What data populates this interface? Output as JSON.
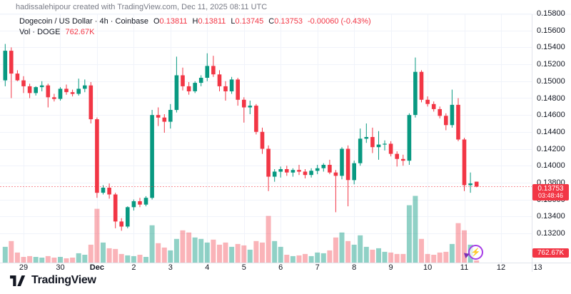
{
  "attribution": "hadissalehipour created with TradingView.com, Dec 11, 2025 08:11 UTC",
  "legend": {
    "title": "Dogecoin / US Dollar · 4h · Coinbase",
    "o_label": "O",
    "o": "0.13811",
    "h_label": "H",
    "h": "0.13811",
    "l_label": "L",
    "l": "0.13745",
    "c_label": "C",
    "c": "0.13753",
    "change": "-0.00060 (-0.43%)",
    "vol_title": "Vol · DOGE",
    "vol": "762.67K"
  },
  "badges": {
    "last_price": "0.13753",
    "countdown": "03:48:46",
    "volume": "762.67K"
  },
  "logo_text": "TradingView",
  "colors": {
    "up": "#089981",
    "down": "#F23645",
    "vol_up": "rgba(8,153,129,0.45)",
    "vol_down": "rgba(242,54,69,0.38)",
    "grid": "#F0F3FA",
    "separator": "#E0E3EB",
    "axis_text": "#131722",
    "muted_text": "#787B86",
    "price_line": "#F23645",
    "badge": "#F23645",
    "lightning": "#A53BE6"
  },
  "price_axis": {
    "ticks": [
      "0.15800",
      "0.15600",
      "0.15400",
      "0.15200",
      "0.15000",
      "0.14800",
      "0.14600",
      "0.14400",
      "0.14200",
      "0.14000",
      "0.13800",
      "0.13600",
      "0.13400",
      "0.13200"
    ]
  },
  "time_axis": {
    "ticks": [
      {
        "label": "29",
        "i": 3
      },
      {
        "label": "30",
        "i": 9
      },
      {
        "label": "Dec",
        "i": 15,
        "bold": true
      },
      {
        "label": "2",
        "i": 21
      },
      {
        "label": "3",
        "i": 27
      },
      {
        "label": "4",
        "i": 33
      },
      {
        "label": "5",
        "i": 39
      },
      {
        "label": "6",
        "i": 45
      },
      {
        "label": "7",
        "i": 51
      },
      {
        "label": "8",
        "i": 57
      },
      {
        "label": "9",
        "i": 63
      },
      {
        "label": "10",
        "i": 69
      },
      {
        "label": "11",
        "i": 75
      },
      {
        "label": "12",
        "i": 81
      },
      {
        "label": "13",
        "i": 87
      }
    ]
  },
  "chart_data": {
    "type": "candlestick",
    "symbol": "Dogecoin / US Dollar",
    "exchange": "Coinbase",
    "interval": "4h",
    "title": "Dogecoin / US Dollar · 4h · Coinbase",
    "last_candle": {
      "open": 0.13811,
      "high": 0.13811,
      "low": 0.13745,
      "close": 0.13753,
      "change": -0.0006,
      "change_pct": -0.43,
      "volume": "762.67K",
      "countdown": "03:48:46"
    },
    "current_price": 0.13753,
    "ylim": [
      0.1285,
      0.158
    ],
    "price_grid_step": 0.002,
    "x_range_days": [
      "Nov 28",
      "Dec 13"
    ],
    "grid": true,
    "volume_unit": "K",
    "volume_axis_max": 24000,
    "columns": [
      "open",
      "high",
      "low",
      "close",
      "volume_K"
    ],
    "candles": [
      [
        0.1501,
        0.1544,
        0.1494,
        0.1536,
        5590
      ],
      [
        0.1536,
        0.154,
        0.148,
        0.1509,
        7620
      ],
      [
        0.1509,
        0.1513,
        0.15,
        0.1501,
        3560
      ],
      [
        0.1501,
        0.1506,
        0.1486,
        0.1494,
        2030
      ],
      [
        0.1494,
        0.1497,
        0.148,
        0.1486,
        2290
      ],
      [
        0.1486,
        0.1494,
        0.1483,
        0.1493,
        2030
      ],
      [
        0.1493,
        0.15,
        0.1488,
        0.1495,
        1780
      ],
      [
        0.1495,
        0.1497,
        0.1469,
        0.1481,
        2290
      ],
      [
        0.1481,
        0.1485,
        0.1476,
        0.1479,
        1780
      ],
      [
        0.1479,
        0.1493,
        0.1477,
        0.1491,
        2030
      ],
      [
        0.1491,
        0.1496,
        0.1484,
        0.1487,
        1520
      ],
      [
        0.1487,
        0.149,
        0.1482,
        0.1485,
        1780
      ],
      [
        0.1485,
        0.1503,
        0.1483,
        0.1491,
        3300
      ],
      [
        0.1491,
        0.1502,
        0.1487,
        0.1495,
        2790
      ],
      [
        0.1495,
        0.1499,
        0.145,
        0.1455,
        6350
      ],
      [
        0.1455,
        0.1457,
        0.1362,
        0.1368,
        19050
      ],
      [
        0.1368,
        0.1377,
        0.1366,
        0.1374,
        7110
      ],
      [
        0.1374,
        0.1379,
        0.1361,
        0.1366,
        5080
      ],
      [
        0.1366,
        0.1368,
        0.1326,
        0.1334,
        4830
      ],
      [
        0.1334,
        0.1338,
        0.1323,
        0.1328,
        3050
      ],
      [
        0.1328,
        0.1352,
        0.1326,
        0.1351,
        2540
      ],
      [
        0.1351,
        0.136,
        0.1347,
        0.1358,
        2290
      ],
      [
        0.1358,
        0.1362,
        0.1351,
        0.1354,
        2790
      ],
      [
        0.1354,
        0.1364,
        0.1352,
        0.1362,
        2030
      ],
      [
        0.1362,
        0.1466,
        0.136,
        0.146,
        13210
      ],
      [
        0.146,
        0.1469,
        0.1447,
        0.1457,
        6860
      ],
      [
        0.1457,
        0.1461,
        0.1439,
        0.1452,
        5330
      ],
      [
        0.1452,
        0.1473,
        0.1444,
        0.1466,
        4320
      ],
      [
        0.1466,
        0.1529,
        0.1463,
        0.1507,
        8380
      ],
      [
        0.1507,
        0.1516,
        0.1489,
        0.1494,
        11430
      ],
      [
        0.1494,
        0.1499,
        0.1484,
        0.1488,
        10670
      ],
      [
        0.1488,
        0.15,
        0.1486,
        0.1498,
        8890
      ],
      [
        0.1498,
        0.1507,
        0.1494,
        0.1504,
        8380
      ],
      [
        0.1504,
        0.1533,
        0.15,
        0.1518,
        7110
      ],
      [
        0.1518,
        0.153,
        0.1505,
        0.1508,
        8130
      ],
      [
        0.1508,
        0.1513,
        0.1488,
        0.1494,
        6350
      ],
      [
        0.1494,
        0.15,
        0.1477,
        0.1488,
        7110
      ],
      [
        0.1488,
        0.1505,
        0.1485,
        0.1502,
        5590
      ],
      [
        0.1502,
        0.1504,
        0.1471,
        0.1478,
        6600
      ],
      [
        0.1478,
        0.1481,
        0.1451,
        0.1469,
        6100
      ],
      [
        0.1469,
        0.1477,
        0.1461,
        0.1471,
        4570
      ],
      [
        0.1471,
        0.1473,
        0.1437,
        0.144,
        7620
      ],
      [
        0.144,
        0.1445,
        0.1414,
        0.142,
        7110
      ],
      [
        0.142,
        0.1424,
        0.137,
        0.1387,
        16510
      ],
      [
        0.1387,
        0.1396,
        0.1381,
        0.1393,
        7620
      ],
      [
        0.1393,
        0.1399,
        0.1386,
        0.1396,
        5590
      ],
      [
        0.1396,
        0.14,
        0.1388,
        0.1392,
        2790
      ],
      [
        0.1392,
        0.1397,
        0.1387,
        0.1395,
        2290
      ],
      [
        0.1395,
        0.1401,
        0.1389,
        0.1393,
        2540
      ],
      [
        0.1393,
        0.1396,
        0.1385,
        0.1389,
        3050
      ],
      [
        0.1389,
        0.1397,
        0.1386,
        0.1394,
        2290
      ],
      [
        0.1394,
        0.1401,
        0.139,
        0.1397,
        3560
      ],
      [
        0.1397,
        0.1403,
        0.1393,
        0.1401,
        3300
      ],
      [
        0.1401,
        0.1407,
        0.139,
        0.1392,
        4320
      ],
      [
        0.1392,
        0.1395,
        0.1345,
        0.1388,
        8890
      ],
      [
        0.1388,
        0.1422,
        0.1384,
        0.142,
        10670
      ],
      [
        0.142,
        0.1424,
        0.1352,
        0.1383,
        7620
      ],
      [
        0.1383,
        0.1406,
        0.1378,
        0.1403,
        6350
      ],
      [
        0.1403,
        0.1444,
        0.14,
        0.1432,
        9650
      ],
      [
        0.1432,
        0.145,
        0.1427,
        0.1434,
        5590
      ],
      [
        0.1434,
        0.1445,
        0.1415,
        0.1422,
        4570
      ],
      [
        0.1422,
        0.1441,
        0.1407,
        0.1425,
        5080
      ],
      [
        0.1425,
        0.143,
        0.1418,
        0.1426,
        3810
      ],
      [
        0.1426,
        0.1429,
        0.1411,
        0.1414,
        3560
      ],
      [
        0.1414,
        0.1417,
        0.1399,
        0.1408,
        3050
      ],
      [
        0.1408,
        0.1413,
        0.14,
        0.1406,
        3050
      ],
      [
        0.1406,
        0.1462,
        0.1401,
        0.146,
        20320
      ],
      [
        0.146,
        0.1528,
        0.1457,
        0.1511,
        23620
      ],
      [
        0.1511,
        0.1513,
        0.1475,
        0.1478,
        8380
      ],
      [
        0.1478,
        0.1482,
        0.147,
        0.1473,
        3050
      ],
      [
        0.1473,
        0.1476,
        0.1464,
        0.1467,
        2790
      ],
      [
        0.1467,
        0.147,
        0.1456,
        0.1459,
        3560
      ],
      [
        0.1459,
        0.1462,
        0.1442,
        0.1448,
        3810
      ],
      [
        0.1448,
        0.149,
        0.1445,
        0.1472,
        6600
      ],
      [
        0.1472,
        0.148,
        0.1429,
        0.1431,
        13970
      ],
      [
        0.1431,
        0.1433,
        0.137,
        0.1377,
        11430
      ],
      [
        0.1377,
        0.1392,
        0.1368,
        0.1379,
        6350
      ],
      [
        0.13811,
        0.13811,
        0.13745,
        0.13753,
        762.67
      ]
    ]
  }
}
